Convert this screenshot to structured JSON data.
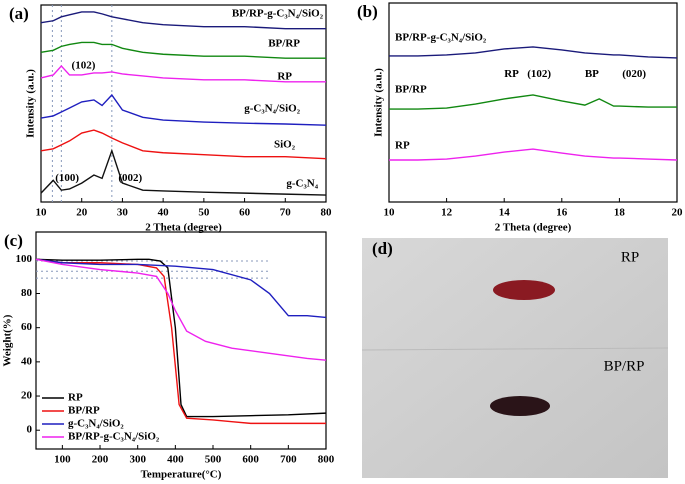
{
  "chart_data": [
    {
      "type": "line",
      "panel_label": "(a)",
      "x_label": "2 Theta (degree)",
      "y_label": "Intensity (a.u.)",
      "x": [
        10,
        13,
        15,
        17,
        20,
        23,
        25,
        27.4,
        30,
        35,
        40,
        50,
        60,
        70,
        80
      ],
      "xlim": [
        10,
        80
      ],
      "xticks": [
        10,
        20,
        30,
        40,
        50,
        60,
        70,
        80
      ],
      "ylim": [
        0,
        100
      ],
      "series_labels": "inline",
      "vlines": [
        12.8,
        15,
        27.4
      ],
      "series": [
        {
          "name": "BP/RP-g-C₃N₄/SiO₂",
          "color": "#1a1a7a",
          "values": [
            91,
            92,
            94,
            95,
            96.5,
            96.5,
            95.5,
            94,
            93,
            91,
            90,
            89,
            89,
            88,
            88
          ]
        },
        {
          "name": "BP/RP",
          "color": "#118811",
          "values": [
            76,
            77,
            79,
            80,
            81,
            81,
            80,
            80,
            78,
            76,
            75,
            74,
            74,
            73,
            73
          ]
        },
        {
          "name": "RP",
          "color": "#ee22ee",
          "values": [
            63,
            64.5,
            69,
            64.5,
            64.5,
            65.5,
            65.5,
            66,
            65,
            64,
            63,
            62,
            62,
            61,
            61
          ]
        },
        {
          "name": "g-C₃N₄/SiO₂",
          "color": "#1f1fbf",
          "values": [
            42.6,
            43.7,
            45.7,
            47.7,
            50.8,
            51.8,
            49,
            54.3,
            46.7,
            43,
            41.6,
            40.6,
            40,
            39.6,
            39
          ]
        },
        {
          "name": "SiO₂",
          "color": "#ee1111",
          "values": [
            26,
            27,
            29,
            31,
            35,
            36.5,
            35,
            32.5,
            30,
            26,
            25,
            24,
            23,
            23,
            22
          ]
        },
        {
          "name": "g-C₃N₄",
          "color": "#111111",
          "values": [
            4.5,
            11,
            6,
            6.6,
            9.6,
            13.7,
            12,
            26,
            9.6,
            6,
            5.6,
            5,
            4.5,
            4,
            3.5
          ]
        }
      ],
      "annotations": [
        {
          "text": "(102)",
          "x": 17.5,
          "y": 69
        },
        {
          "text": "(100)",
          "x": 13.5,
          "y": 12
        },
        {
          "text": "(002)",
          "x": 29,
          "y": 12
        }
      ]
    },
    {
      "type": "line",
      "panel_label": "(b)",
      "x_label": "2 Theta (degree)",
      "y_label": "Intensity (a.u.)",
      "x": [
        10,
        11,
        12,
        13,
        14,
        15,
        16,
        16.8,
        17.3,
        17.8,
        18,
        19,
        20
      ],
      "xlim": [
        10,
        20
      ],
      "xticks": [
        10,
        12,
        14,
        16,
        18,
        20
      ],
      "ylim": [
        0,
        100
      ],
      "series_labels": "inline",
      "series": [
        {
          "name": "BP/RP-g-C₃N₄/SiO₂",
          "color": "#1a1a7a",
          "values": [
            73.4,
            73.4,
            73.9,
            74.9,
            76.9,
            77.9,
            76.4,
            74.9,
            74.4,
            73.9,
            73.9,
            72.9,
            72.4
          ]
        },
        {
          "name": "BP/RP",
          "color": "#118811",
          "values": [
            46.7,
            46.7,
            47.2,
            49.2,
            51.8,
            53.8,
            50.8,
            48.7,
            51.8,
            48.2,
            48.2,
            47.7,
            47.7
          ]
        },
        {
          "name": "RP",
          "color": "#ee22ee",
          "values": [
            21.1,
            21.1,
            21.6,
            23.1,
            25.1,
            26.6,
            24.6,
            23.1,
            22.6,
            22.1,
            22.1,
            21.6,
            21.1
          ]
        }
      ],
      "annotations": [
        {
          "text": "RP",
          "x": 14,
          "y": 64
        },
        {
          "text": "(102)",
          "x": 14.8,
          "y": 64
        },
        {
          "text": "BP",
          "x": 16.8,
          "y": 64
        },
        {
          "text": "(020)",
          "x": 18.1,
          "y": 64
        }
      ]
    },
    {
      "type": "line",
      "panel_label": "(c)",
      "x_label": "Temperature(°C)",
      "y_label": "Weight(%)",
      "xlim": [
        30,
        800
      ],
      "xticks": [
        100,
        200,
        300,
        400,
        500,
        600,
        700,
        800
      ],
      "ylim": [
        -11,
        116
      ],
      "yticks": [
        0,
        20,
        40,
        60,
        80,
        100
      ],
      "legend": "lower left",
      "hlines": [
        99,
        93,
        89
      ],
      "series": [
        {
          "name": "RP",
          "color": "#000000",
          "x": [
            30,
            100,
            200,
            300,
            330,
            360,
            380,
            400,
            415,
            430,
            500,
            600,
            700,
            800
          ],
          "values": [
            100,
            99.5,
            99.5,
            100,
            100,
            99,
            95,
            60,
            15,
            8,
            8,
            8.5,
            9,
            10
          ]
        },
        {
          "name": "BP/RP",
          "color": "#ee1111",
          "x": [
            30,
            100,
            200,
            300,
            350,
            370,
            390,
            410,
            430,
            500,
            550,
            600,
            700,
            800
          ],
          "values": [
            100,
            98,
            98,
            97,
            95,
            90,
            60,
            15,
            7,
            6,
            5,
            4,
            4,
            4
          ]
        },
        {
          "name": "g-C₃N₄/SiO₂",
          "color": "#1f1fbf",
          "x": [
            30,
            100,
            200,
            300,
            400,
            500,
            600,
            650,
            700,
            750,
            800
          ],
          "values": [
            100,
            98,
            97,
            97,
            96,
            94,
            88,
            80,
            67,
            67,
            66
          ]
        },
        {
          "name": "BP/RP-g-C₃N₄/SiO₂",
          "color": "#ee22ee",
          "x": [
            30,
            100,
            200,
            300,
            350,
            380,
            400,
            430,
            480,
            550,
            650,
            750,
            800
          ],
          "values": [
            100,
            97,
            94,
            92,
            90,
            80,
            70,
            58,
            52,
            48,
            45,
            42,
            41
          ]
        }
      ]
    }
  ],
  "photo": {
    "panel_label": "(d)",
    "labels": [
      "RP",
      "BP/RP"
    ]
  }
}
